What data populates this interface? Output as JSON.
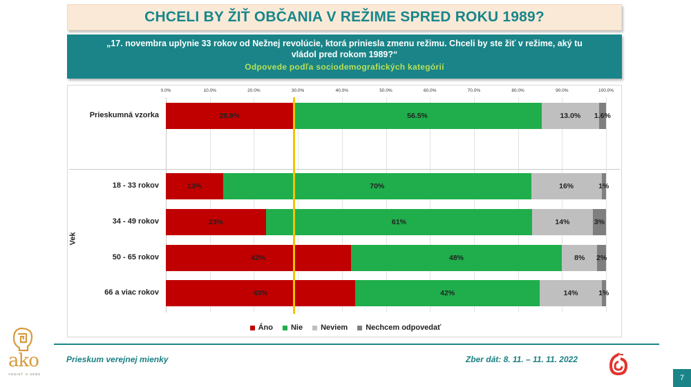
{
  "header": {
    "title": "CHCELI BY ŽIŤ OBČANIA V REŽIME SPRED ROKU 1989?",
    "question": "„17. novembra uplynie 33 rokov od Nežnej revolúcie, ktorá priniesla zmenu režimu. Chceli by ste žiť v režime, aký tu vládol pred rokom 1989?“",
    "subtitle": "Odpovede podľa sociodemografických  kategórií"
  },
  "chart_data": {
    "type": "bar",
    "orientation": "horizontal-stacked-100",
    "title": "CHCELI BY ŽIŤ OBČANIA V REŽIME SPRED ROKU 1989?",
    "xlabel": "",
    "ylabel": "Vek",
    "xlim": [
      0,
      100
    ],
    "x_ticks": [
      "0.0%",
      "10.0%",
      "20.0%",
      "30.0%",
      "40.0%",
      "50.0%",
      "60.0%",
      "70.0%",
      "80.0%",
      "90.0%",
      "100.0%"
    ],
    "grid": true,
    "legend_position": "bottom",
    "reference_line": {
      "value": 28.9,
      "color": "#f5c400"
    },
    "categories": [
      "Prieskumná vzorka",
      "18 - 33 rokov",
      "34 - 49 rokov",
      "50 - 65 rokov",
      "66 a viac rokov"
    ],
    "series": [
      {
        "name": "Áno",
        "color": "#c00000",
        "values": [
          28.9,
          13,
          23,
          42,
          43
        ],
        "labels": [
          "28.9%",
          "13%",
          "23%",
          "42%",
          "43%"
        ]
      },
      {
        "name": "Nie",
        "color": "#1fae4b",
        "values": [
          56.5,
          70,
          61,
          48,
          42
        ],
        "labels": [
          "56.5%",
          "70%",
          "61%",
          "48%",
          "42%"
        ]
      },
      {
        "name": "Neviem",
        "color": "#bfbfbf",
        "values": [
          13.0,
          16,
          14,
          8,
          14
        ],
        "labels": [
          "13.0%",
          "16%",
          "14%",
          "8%",
          "14%"
        ]
      },
      {
        "name": "Nechcem odpovedať",
        "color": "#7f7f7f",
        "values": [
          1.6,
          1,
          3,
          2,
          1
        ],
        "labels": [
          "1.6%",
          "1%",
          "3%",
          "2%",
          "1%"
        ]
      }
    ]
  },
  "legend": [
    "Áno",
    "Nie",
    "Neviem",
    "Nechcem odpovedať"
  ],
  "footer": {
    "left": "Prieskum verejnej mienky",
    "right": "Zber dát: 8. 11. – 11. 11. 2022",
    "logo_text": "ako",
    "logo_sub": "VEDIEŤ O SEBE",
    "page_number": "7"
  }
}
